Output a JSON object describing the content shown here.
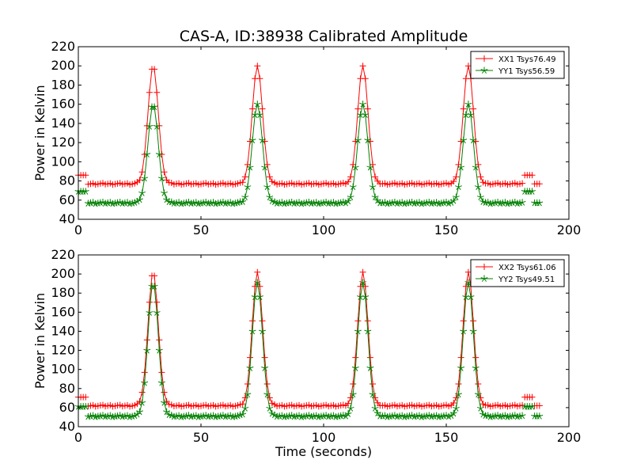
{
  "colors": {
    "xx": "#ff0000",
    "yy": "#008000"
  },
  "chart_data": [
    {
      "type": "line",
      "title": "CAS-A, ID:38938 Calibrated Amplitude",
      "xlabel": "",
      "ylabel": "Power in Kelvin",
      "xlim": [
        0,
        200
      ],
      "ylim": [
        40,
        220
      ],
      "xticks": [
        0,
        50,
        100,
        150,
        200
      ],
      "yticks": [
        40,
        60,
        80,
        100,
        120,
        140,
        160,
        180,
        200,
        220
      ],
      "legend_position": "top-right",
      "peaks": [
        30.5,
        73,
        116,
        159
      ],
      "series": [
        {
          "name": "XX1 Tsys76.49",
          "color": "#ff0000",
          "marker": "+",
          "baseline": 77,
          "peak": 200,
          "edge_value": 86
        },
        {
          "name": "YY1 Tsys56.59",
          "color": "#008000",
          "marker": "*",
          "baseline": 57,
          "peak": 160,
          "edge_value": 69
        }
      ]
    },
    {
      "type": "line",
      "title": "",
      "xlabel": "Time (seconds)",
      "ylabel": "Power in Kelvin",
      "xlim": [
        0,
        200
      ],
      "ylim": [
        40,
        220
      ],
      "xticks": [
        0,
        50,
        100,
        150,
        200
      ],
      "yticks": [
        40,
        60,
        80,
        100,
        120,
        140,
        160,
        180,
        200,
        220
      ],
      "legend_position": "top-right",
      "peaks": [
        30.5,
        73,
        116,
        159
      ],
      "series": [
        {
          "name": "XX2 Tsys61.06",
          "color": "#ff0000",
          "marker": "+",
          "baseline": 62,
          "peak": 202,
          "edge_value": 71
        },
        {
          "name": "YY2 Tsys49.51",
          "color": "#008000",
          "marker": "*",
          "baseline": 51,
          "peak": 191,
          "edge_value": 61
        }
      ]
    }
  ]
}
